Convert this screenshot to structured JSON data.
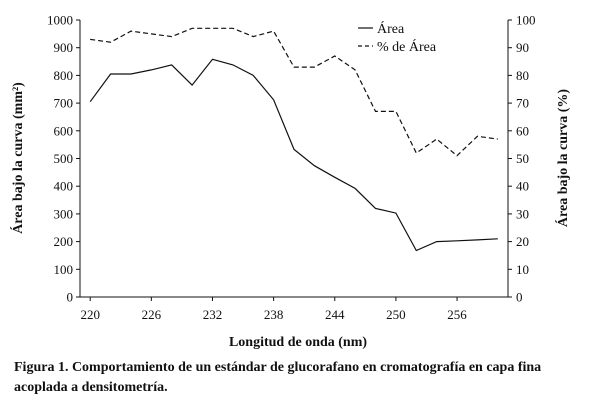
{
  "chart_data": {
    "type": "line",
    "x": [
      220,
      222,
      224,
      226,
      228,
      230,
      232,
      234,
      236,
      238,
      240,
      242,
      244,
      246,
      248,
      250,
      252,
      254,
      256,
      258,
      260
    ],
    "x_ticks": [
      "220",
      "226",
      "232",
      "238",
      "244",
      "250",
      "256"
    ],
    "xlabel": "Longitud de onda (nm)",
    "ylabel": "Área bajo la curva (mm²)",
    "y2label": "Área bajo la curva (%)",
    "ylim": [
      0,
      1000
    ],
    "y2lim": [
      0,
      100
    ],
    "y_ticks": [
      "0",
      "100",
      "200",
      "300",
      "400",
      "500",
      "600",
      "700",
      "800",
      "900",
      "1000"
    ],
    "y2_ticks": [
      "0",
      "10",
      "20",
      "30",
      "40",
      "50",
      "60",
      "70",
      "80",
      "90",
      "100"
    ],
    "series": [
      {
        "name": "Área",
        "axis": "left",
        "style": "solid",
        "values": [
          705,
          805,
          805,
          820,
          838,
          765,
          858,
          838,
          800,
          712,
          533,
          474,
          432,
          392,
          320,
          303,
          168,
          200,
          203,
          206,
          210
        ]
      },
      {
        "name": "% de Área",
        "axis": "right",
        "style": "dashed",
        "values": [
          93,
          92,
          96,
          95,
          94,
          97,
          97,
          97,
          94,
          96,
          83,
          83,
          87,
          82,
          67,
          67,
          52,
          57,
          51,
          58,
          57
        ]
      }
    ],
    "legend_position": "top-right",
    "grid": false
  },
  "caption": "Figura 1. Comportamiento de un estándar de glucorafano en cromatografía en capa fina acoplada a densitometría."
}
